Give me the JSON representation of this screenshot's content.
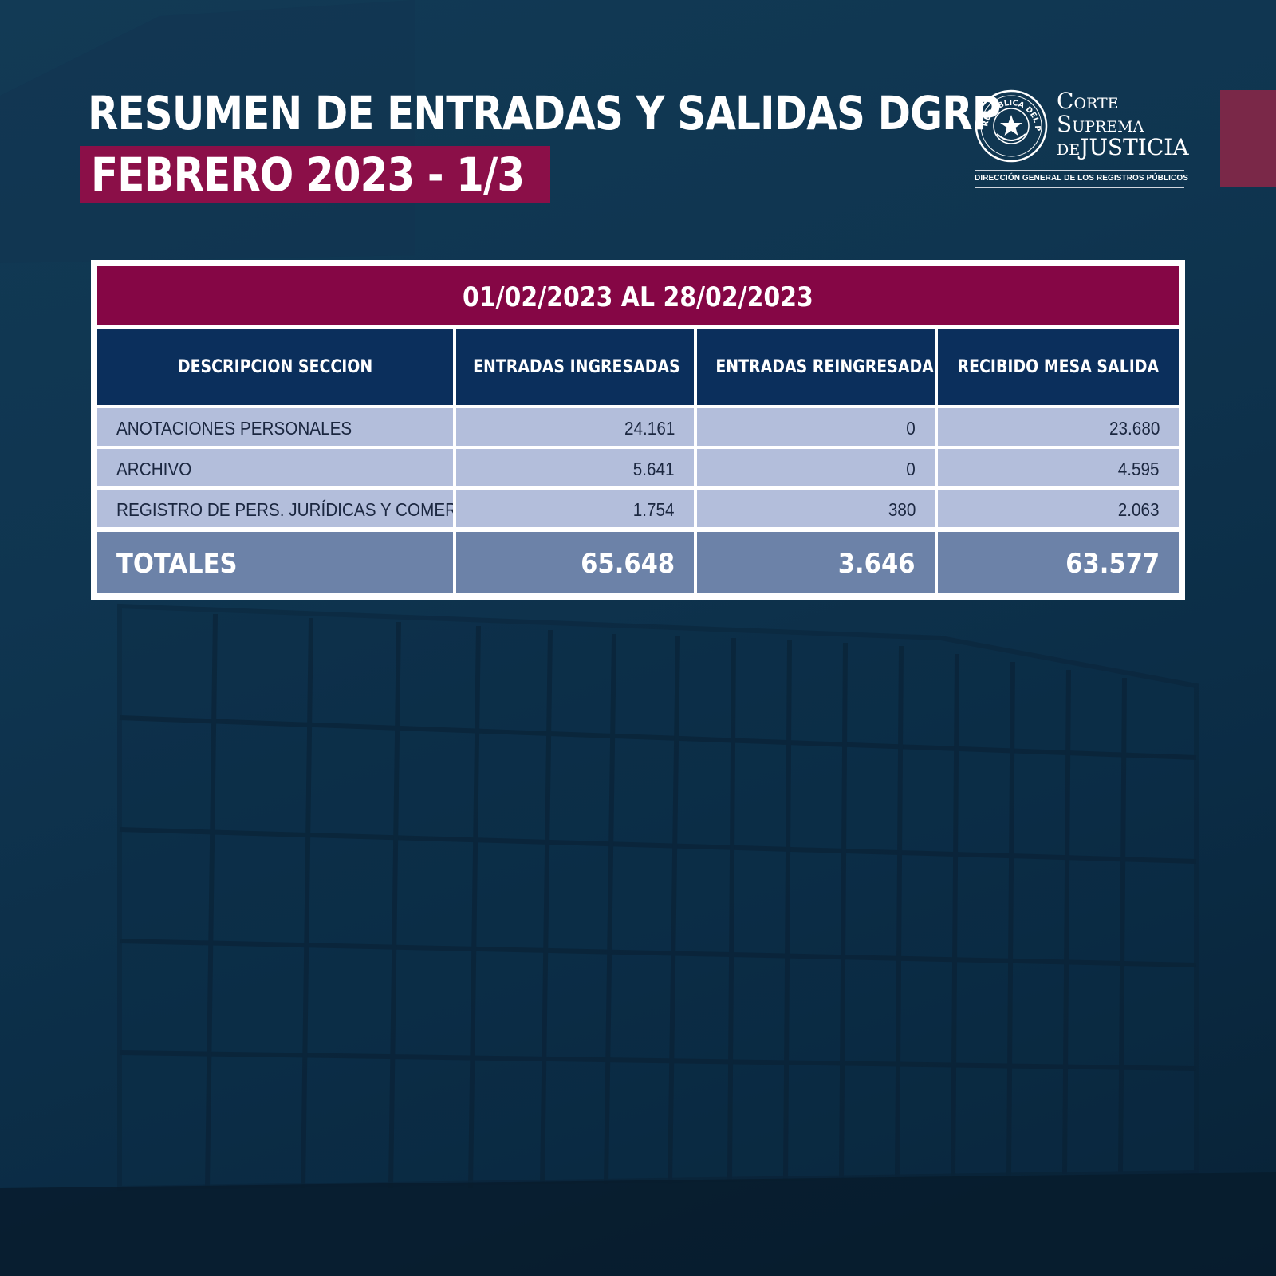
{
  "header": {
    "title_line1": "RESUMEN DE ENTRADAS Y SALIDAS DGRP",
    "title_line2": "FEBRERO 2023 - 1/3"
  },
  "logo": {
    "seal_text": "REPÚBLICA DEL PARAGUAY",
    "word1": "ORTE",
    "word1_initial": "C",
    "word2": "UPREMA",
    "word2_initial": "S",
    "word3_prefix": "DE",
    "word3": "JUSTICIA",
    "subtitle": "DIRECCIÓN GENERAL DE LOS REGISTROS PÚBLICOS"
  },
  "table": {
    "period": "01/02/2023 AL 28/02/2023",
    "columns": [
      "DESCRIPCION SECCION",
      "ENTRADAS INGRESADAS",
      "ENTRADAS REINGRESADAS",
      "RECIBIDO MESA SALIDA"
    ],
    "rows": [
      [
        "ANOTACIONES PERSONALES",
        "24.161",
        "0",
        "23.680"
      ],
      [
        "ARCHIVO",
        "5.641",
        "0",
        "4.595"
      ],
      [
        "REGISTRO DE PERS. JURÍDICAS Y COMERCIO",
        "1.754",
        "380",
        "2.063"
      ]
    ],
    "totals": [
      "TOTALES",
      "65.648",
      "3.646",
      "63.577"
    ]
  },
  "colors": {
    "background": "#0f3550",
    "banner_crimson": "#850645",
    "header_navy": "#0b2f5c",
    "row_light": "#b3bedb",
    "totals_row": "#6c82a8",
    "accent_bar": "#7a2848"
  }
}
